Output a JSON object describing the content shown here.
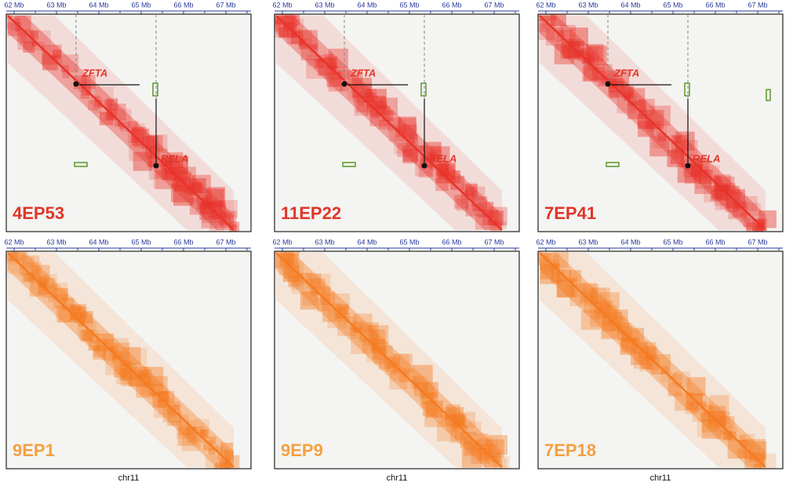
{
  "panels": [
    {
      "label": "4EP53",
      "ticks": [
        "62 Mb",
        "63 Mb",
        "64 Mb",
        "65 Mb",
        "66 Mb",
        "67 Mb"
      ],
      "genes": [
        "ZFTA",
        "RELA"
      ]
    },
    {
      "label": "11EP22",
      "ticks": [
        "62 Mb",
        "63 Mb",
        "64 Mb",
        "65 Mb",
        "66 Mb",
        "67 Mb"
      ],
      "genes": [
        "ZFTA",
        "RELA"
      ]
    },
    {
      "label": "7EP41",
      "ticks": [
        "62 Mb",
        "63 Mb",
        "64 Mb",
        "65 Mb",
        "66 Mb",
        "67 Mb"
      ],
      "genes": [
        "ZFTA",
        "RELA"
      ]
    },
    {
      "label": "9EP1",
      "ticks": [
        "62 Mb",
        "63 Mb",
        "64 Mb",
        "65 Mb",
        "66 Mb",
        "67 Mb"
      ]
    },
    {
      "label": "9EP9",
      "ticks": [
        "62 Mb",
        "63 Mb",
        "64 Mb",
        "65 Mb",
        "66 Mb",
        "67 Mb"
      ]
    },
    {
      "label": "7EP18",
      "ticks": [
        "62 Mb",
        "63 Mb",
        "64 Mb",
        "65 Mb",
        "66 Mb",
        "67 Mb"
      ]
    }
  ],
  "x_labels": [
    "chr11",
    "chr11",
    "chr11"
  ]
}
